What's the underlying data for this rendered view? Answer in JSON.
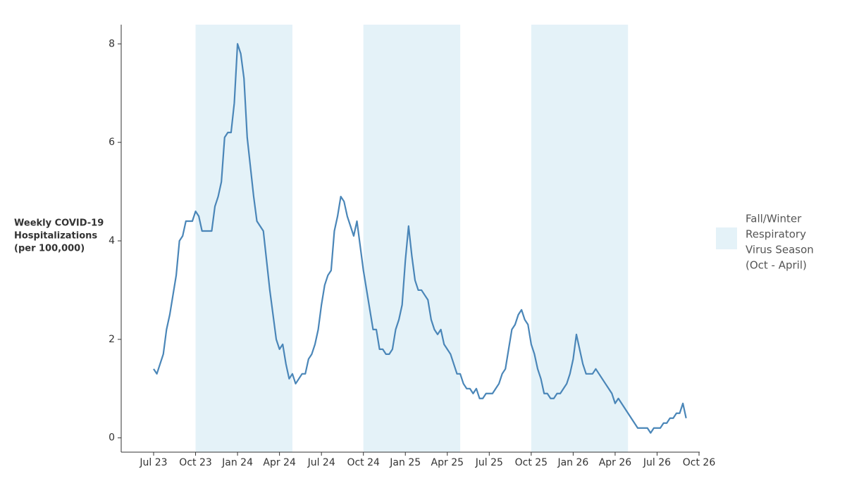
{
  "chart_data": {
    "type": "line",
    "y_label": [
      "Weekly COVID-19",
      "Hospitalizations",
      "(per 100,000)"
    ],
    "legend_label": [
      "Fall/Winter",
      "Respiratory",
      "Virus Season",
      "(Oct - April)"
    ],
    "band_color": "#e4f2f8",
    "shaded_ranges": [
      [
        13,
        43
      ],
      [
        65,
        95
      ],
      [
        117,
        147
      ]
    ],
    "color": "#4a86b8",
    "ylim": [
      -0.29,
      8.39
    ],
    "yticks": [
      0,
      2,
      4,
      6,
      8
    ],
    "categories": [
      "Jul 23",
      null,
      null,
      null,
      null,
      null,
      null,
      null,
      null,
      null,
      null,
      null,
      null,
      "Oct 23",
      null,
      null,
      null,
      null,
      null,
      null,
      null,
      null,
      null,
      null,
      null,
      null,
      "Jan 24",
      null,
      null,
      null,
      null,
      null,
      null,
      null,
      null,
      null,
      null,
      null,
      null,
      "Apr 24",
      null,
      null,
      null,
      null,
      null,
      null,
      null,
      null,
      null,
      null,
      null,
      null,
      "Jul 24",
      null,
      null,
      null,
      null,
      null,
      null,
      null,
      null,
      null,
      null,
      null,
      null,
      "Oct 24",
      null,
      null,
      null,
      null,
      null,
      null,
      null,
      null,
      null,
      null,
      null,
      null,
      "Jan 25",
      null,
      null,
      null,
      null,
      null,
      null,
      null,
      null,
      null,
      null,
      null,
      null,
      "Apr 25",
      null,
      null,
      null,
      null,
      null,
      null,
      null,
      null,
      null,
      null,
      null,
      null,
      "Jul 25",
      null,
      null,
      null,
      null,
      null,
      null,
      null,
      null,
      null,
      null,
      null,
      null,
      "Oct 25",
      null,
      null,
      null,
      null,
      null,
      null,
      null,
      null,
      null,
      null,
      null,
      null,
      "Jan 26",
      null,
      null,
      null,
      null,
      null,
      null,
      null,
      null,
      null,
      null,
      null,
      null,
      "Apr 26",
      null,
      null,
      null,
      null,
      null,
      null,
      null,
      null,
      null,
      null,
      null,
      null,
      "Jul 26",
      null,
      null,
      null,
      null,
      null,
      null,
      null,
      null,
      null,
      null,
      null,
      null,
      "Oct 26"
    ],
    "values": [
      1.4,
      1.3,
      1.5,
      1.7,
      2.2,
      2.5,
      2.9,
      3.3,
      4.0,
      4.1,
      4.4,
      4.4,
      4.4,
      4.6,
      4.5,
      4.2,
      4.2,
      4.2,
      4.2,
      4.7,
      4.9,
      5.2,
      6.1,
      6.2,
      6.2,
      6.8,
      8.0,
      7.8,
      7.3,
      6.1,
      5.5,
      4.9,
      4.4,
      4.3,
      4.2,
      3.6,
      3.0,
      2.5,
      2.0,
      1.8,
      1.9,
      1.5,
      1.2,
      1.3,
      1.1,
      1.2,
      1.3,
      1.3,
      1.6,
      1.7,
      1.9,
      2.2,
      2.7,
      3.1,
      3.3,
      3.4,
      4.2,
      4.5,
      4.9,
      4.8,
      4.5,
      4.3,
      4.1,
      4.4,
      3.9,
      3.4,
      3.0,
      2.6,
      2.2,
      2.2,
      1.8,
      1.8,
      1.7,
      1.7,
      1.8,
      2.2,
      2.4,
      2.7,
      3.6,
      4.3,
      3.7,
      3.2,
      3.0,
      3.0,
      2.9,
      2.8,
      2.4,
      2.2,
      2.1,
      2.2,
      1.9,
      1.8,
      1.7,
      1.5,
      1.3,
      1.3,
      1.1,
      1.0,
      1.0,
      0.9,
      1.0,
      0.8,
      0.8,
      0.9,
      0.9,
      0.9,
      1.0,
      1.1,
      1.3,
      1.4,
      1.8,
      2.2,
      2.3,
      2.5,
      2.6,
      2.4,
      2.3,
      1.9,
      1.7,
      1.4,
      1.2,
      0.9,
      0.9,
      0.8,
      0.8,
      0.9,
      0.9,
      1.0,
      1.1,
      1.3,
      1.6,
      2.1,
      1.8,
      1.5,
      1.3,
      1.3,
      1.3,
      1.4,
      1.3,
      1.2,
      1.1,
      1.0,
      0.9,
      0.7,
      0.8,
      0.7,
      0.6,
      0.5,
      0.4,
      0.3,
      0.2,
      0.2,
      0.2,
      0.2,
      0.1,
      0.2,
      0.2,
      0.2,
      0.3,
      0.3,
      0.4,
      0.4,
      0.5,
      0.5,
      0.7,
      0.4,
      null,
      null,
      null,
      null
    ]
  }
}
